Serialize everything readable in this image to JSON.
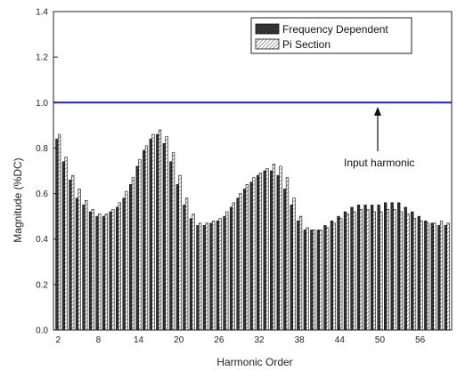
{
  "chart_data": {
    "type": "bar",
    "xlabel": "Harmonic Order",
    "ylabel": "Magnitude (%DC)",
    "ylim": [
      0,
      1.4
    ],
    "yticks": [
      "0.0",
      "0.2",
      "0.4",
      "0.6",
      "0.8",
      "1.0",
      "1.2",
      "1.4"
    ],
    "xtick_labels": [
      "2",
      "8",
      "14",
      "20",
      "26",
      "32",
      "38",
      "44",
      "50",
      "56"
    ],
    "x": [
      2,
      3,
      4,
      5,
      6,
      7,
      8,
      9,
      10,
      11,
      12,
      13,
      14,
      15,
      16,
      17,
      18,
      19,
      20,
      21,
      22,
      23,
      24,
      25,
      26,
      27,
      28,
      29,
      30,
      31,
      32,
      33,
      34,
      35,
      36,
      37,
      38,
      39,
      40,
      41,
      42,
      43,
      44,
      45,
      46,
      47,
      48,
      49,
      50,
      51,
      52,
      53,
      54,
      55,
      56,
      57,
      58,
      59,
      60
    ],
    "series": [
      {
        "name": "Frequency Dependent",
        "color": "#2a2a2a",
        "pattern": "dark-hatch",
        "values": [
          0.84,
          0.74,
          0.66,
          0.58,
          0.55,
          0.52,
          0.5,
          0.5,
          0.52,
          0.54,
          0.58,
          0.64,
          0.72,
          0.79,
          0.84,
          0.86,
          0.82,
          0.74,
          0.64,
          0.55,
          0.49,
          0.46,
          0.46,
          0.47,
          0.48,
          0.5,
          0.54,
          0.58,
          0.62,
          0.65,
          0.68,
          0.7,
          0.7,
          0.68,
          0.62,
          0.55,
          0.48,
          0.44,
          0.44,
          0.44,
          0.46,
          0.48,
          0.5,
          0.52,
          0.54,
          0.55,
          0.55,
          0.55,
          0.55,
          0.56,
          0.56,
          0.56,
          0.54,
          0.52,
          0.5,
          0.48,
          0.47,
          0.46,
          0.46
        ]
      },
      {
        "name": "Pi Section",
        "color": "#bdbdbd",
        "pattern": "light-hatch",
        "values": [
          0.86,
          0.76,
          0.68,
          0.62,
          0.57,
          0.53,
          0.51,
          0.51,
          0.53,
          0.56,
          0.61,
          0.67,
          0.75,
          0.81,
          0.86,
          0.88,
          0.85,
          0.78,
          0.68,
          0.58,
          0.51,
          0.47,
          0.47,
          0.48,
          0.49,
          0.52,
          0.56,
          0.6,
          0.64,
          0.67,
          0.69,
          0.71,
          0.73,
          0.72,
          0.67,
          0.58,
          0.5,
          0.45,
          0.44,
          0.44,
          0.45,
          0.47,
          0.49,
          0.51,
          0.52,
          0.53,
          0.53,
          0.52,
          0.52,
          0.53,
          0.53,
          0.52,
          0.51,
          0.49,
          0.48,
          0.47,
          0.47,
          0.48,
          0.47
        ]
      }
    ],
    "reference_line": {
      "y": 1.0,
      "color": "#1f1fd6"
    },
    "annotation": {
      "text": "Input harmonic",
      "arrow_target_y": 1.0
    },
    "legend": {
      "position": "top-right"
    },
    "grid": false
  }
}
